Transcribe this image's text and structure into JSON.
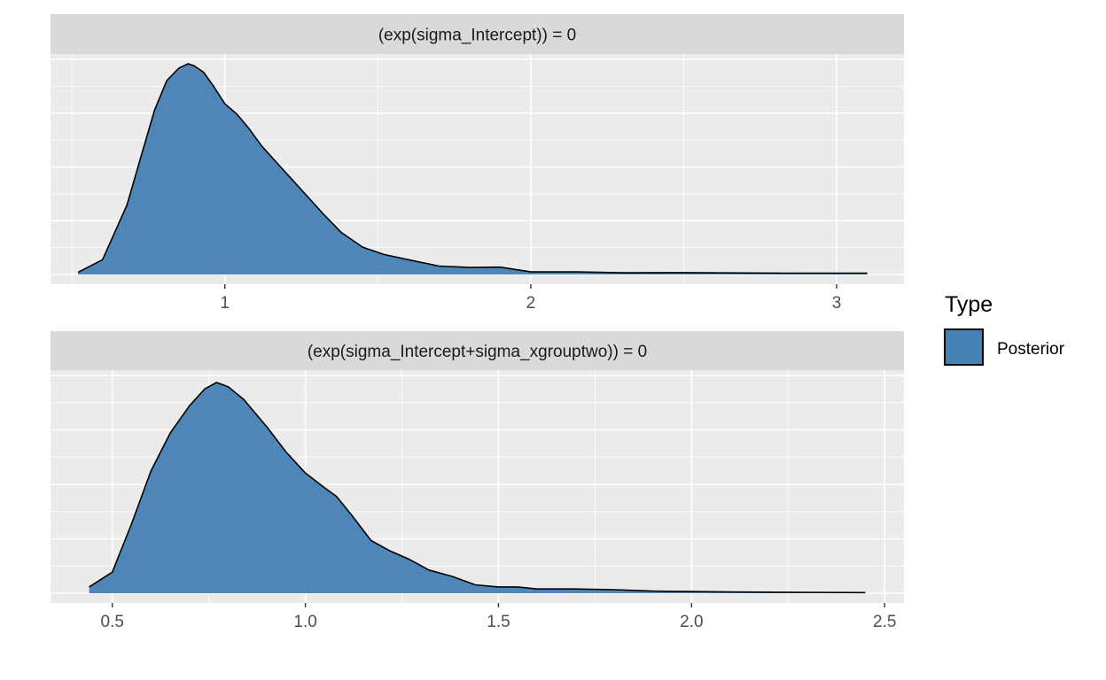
{
  "legend": {
    "title": "Type",
    "items": [
      {
        "label": "Posterior",
        "color": "#4682B4"
      }
    ]
  },
  "colors": {
    "panel_bg": "#EBEBEB",
    "strip_bg": "#D9D9D9",
    "grid": "#FFFFFF",
    "fill": "#4682B4",
    "outline": "#000000"
  },
  "chart_data": [
    {
      "type": "area",
      "title": "(exp(sigma_Intercept)) = 0",
      "xlabel": "",
      "ylabel": "",
      "xlim": [
        0.43,
        3.22
      ],
      "ylim": [
        0,
        1.0
      ],
      "x_ticks": [
        1,
        2,
        3
      ],
      "x_tick_labels": [
        "1",
        "2",
        "3"
      ],
      "series": [
        {
          "name": "Posterior",
          "x": [
            0.52,
            0.6,
            0.68,
            0.73,
            0.77,
            0.81,
            0.85,
            0.88,
            0.9,
            0.93,
            0.96,
            1.0,
            1.04,
            1.08,
            1.12,
            1.17,
            1.22,
            1.27,
            1.32,
            1.38,
            1.45,
            1.52,
            1.6,
            1.7,
            1.8,
            1.9,
            2.0,
            2.15,
            2.3,
            2.5,
            2.7,
            2.9,
            3.1
          ],
          "y": [
            0.01,
            0.07,
            0.33,
            0.58,
            0.78,
            0.92,
            0.98,
            1.0,
            0.99,
            0.96,
            0.9,
            0.81,
            0.76,
            0.69,
            0.61,
            0.53,
            0.45,
            0.37,
            0.29,
            0.2,
            0.13,
            0.095,
            0.07,
            0.04,
            0.033,
            0.035,
            0.012,
            0.012,
            0.008,
            0.009,
            0.007,
            0.006,
            0.006
          ]
        }
      ]
    },
    {
      "type": "area",
      "title": "(exp(sigma_Intercept+sigma_xgrouptwo)) = 0",
      "xlabel": "",
      "ylabel": "",
      "xlim": [
        0.34,
        2.55
      ],
      "ylim": [
        0,
        1.0
      ],
      "x_ticks": [
        0.5,
        1.0,
        1.5,
        2.0,
        2.5
      ],
      "x_tick_labels": [
        "0.5",
        "1.0",
        "1.5",
        "2.0",
        "2.5"
      ],
      "series": [
        {
          "name": "Posterior",
          "x": [
            0.44,
            0.5,
            0.55,
            0.6,
            0.65,
            0.7,
            0.74,
            0.77,
            0.8,
            0.84,
            0.9,
            0.95,
            1.0,
            1.05,
            1.08,
            1.12,
            1.17,
            1.22,
            1.27,
            1.32,
            1.38,
            1.44,
            1.5,
            1.55,
            1.6,
            1.7,
            1.8,
            1.9,
            2.0,
            2.1,
            2.2,
            2.3,
            2.45
          ],
          "y": [
            0.03,
            0.1,
            0.33,
            0.58,
            0.76,
            0.89,
            0.97,
            1.0,
            0.98,
            0.92,
            0.79,
            0.67,
            0.57,
            0.5,
            0.46,
            0.37,
            0.25,
            0.2,
            0.16,
            0.11,
            0.08,
            0.04,
            0.03,
            0.03,
            0.02,
            0.02,
            0.017,
            0.01,
            0.008,
            0.006,
            0.005,
            0.004,
            0.003
          ]
        }
      ]
    }
  ]
}
